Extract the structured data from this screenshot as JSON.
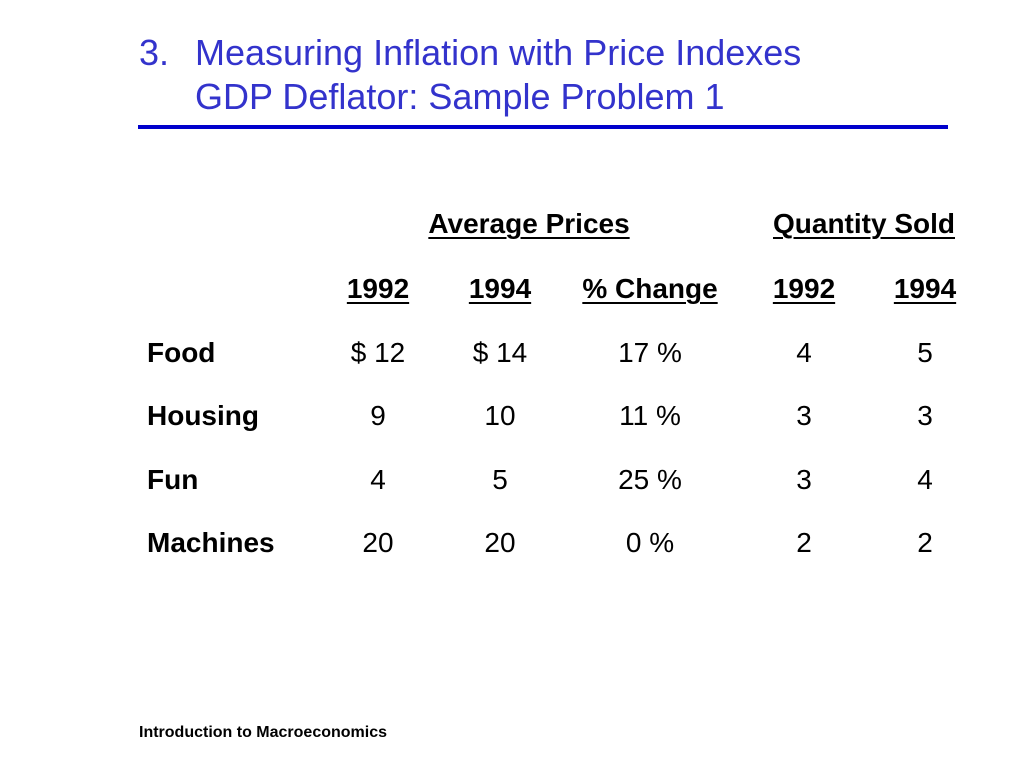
{
  "slide": {
    "title_number": "3.",
    "title_line1": "Measuring Inflation with Price Indexes",
    "title_line2": "GDP Deflator: Sample Problem 1",
    "title_color": "#3333cc",
    "rule_color": "#0000cc"
  },
  "table": {
    "group_headers": {
      "prices": "Average Prices",
      "quantity": "Quantity Sold"
    },
    "column_headers": {
      "p1992": "1992",
      "p1994": "1994",
      "pchange": "% Change",
      "q1992": "1992",
      "q1994": "1994"
    },
    "rows": [
      {
        "label": "Food",
        "p1992": "$ 12",
        "p1994": "$ 14",
        "pchange": "17 %",
        "q1992": "4",
        "q1994": "5"
      },
      {
        "label": "Housing",
        "p1992": "9",
        "p1994": "10",
        "pchange": "11 %",
        "q1992": "3",
        "q1994": "3"
      },
      {
        "label": "Fun",
        "p1992": "4",
        "p1994": "5",
        "pchange": "25 %",
        "q1992": "3",
        "q1994": "4"
      },
      {
        "label": "Machines",
        "p1992": "20",
        "p1994": "20",
        "pchange": "0 %",
        "q1992": "2",
        "q1994": "2"
      }
    ]
  },
  "footer": {
    "text": "Introduction to Macroeconomics"
  }
}
